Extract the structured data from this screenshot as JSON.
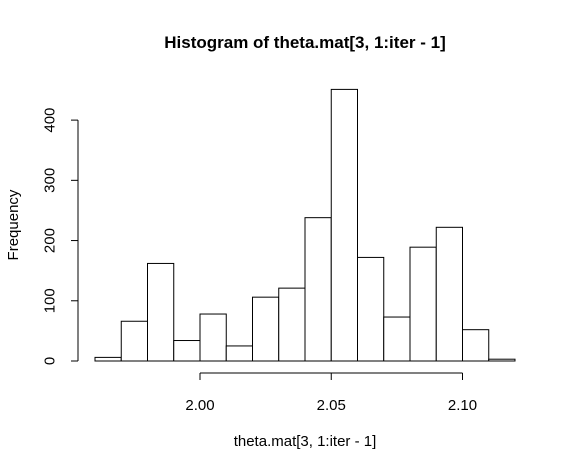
{
  "chart_data": {
    "type": "bar",
    "title": "Histogram of theta.mat[3, 1:iter - 1]",
    "xlabel": "theta.mat[3, 1:iter - 1]",
    "ylabel": "Frequency",
    "xlim": [
      1.96,
      2.12
    ],
    "ylim": [
      0,
      450
    ],
    "x_ticks": [
      2.0,
      2.05,
      2.1
    ],
    "x_tick_labels": [
      "2.00",
      "2.05",
      "2.10"
    ],
    "y_ticks": [
      0,
      100,
      200,
      300,
      400
    ],
    "y_tick_labels": [
      "0",
      "100",
      "200",
      "300",
      "400"
    ],
    "bin_edges": [
      1.96,
      1.97,
      1.98,
      1.99,
      2.0,
      2.01,
      2.02,
      2.03,
      2.04,
      2.05,
      2.06,
      2.07,
      2.08,
      2.09,
      2.1,
      2.11,
      2.12
    ],
    "values": [
      6,
      66,
      162,
      34,
      78,
      25,
      106,
      121,
      238,
      451,
      172,
      73,
      189,
      222,
      52,
      3
    ],
    "grid": false
  }
}
